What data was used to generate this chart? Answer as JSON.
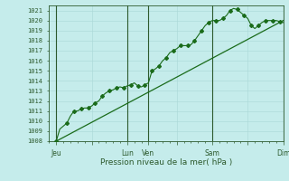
{
  "xlabel": "Pression niveau de la mer( hPa )",
  "bg_color": "#c5eceb",
  "grid_color_minor": "#aad8d7",
  "grid_color_major": "#88c4c2",
  "line_color": "#1a6b1a",
  "axis_color": "#2d5a2d",
  "ylim": [
    1008,
    1021.5
  ],
  "xlim": [
    0,
    33
  ],
  "yticks": [
    1008,
    1009,
    1010,
    1011,
    1012,
    1013,
    1014,
    1015,
    1016,
    1017,
    1018,
    1019,
    1020,
    1021
  ],
  "xtick_labels": [
    "Jeu",
    "",
    "Lun",
    "Ven",
    "",
    "Sam",
    "",
    "Dim"
  ],
  "xtick_pos": [
    1,
    6,
    11,
    14,
    18,
    23,
    28,
    33
  ],
  "vline_positions": [
    1,
    11,
    14,
    23,
    33
  ],
  "curve1_x": [
    1,
    1.5,
    2.5,
    3,
    3.5,
    4,
    4.5,
    5,
    5.5,
    6,
    6.5,
    7,
    7.5,
    8,
    8.5,
    9,
    9.5,
    10,
    10.5,
    11,
    11.5,
    12,
    12.5,
    13,
    13.5,
    14,
    14.5,
    15,
    15.5,
    16,
    16.5,
    17,
    17.5,
    18,
    18.5,
    19,
    19.5,
    20,
    20.5,
    21,
    21.5,
    22,
    22.5,
    23,
    23.5,
    24,
    24.5,
    25,
    25.5,
    26,
    26.5,
    27,
    27.5,
    28,
    28.5,
    29,
    29.5,
    30,
    30.5,
    31,
    31.5,
    32,
    32.5,
    33
  ],
  "curve1_y": [
    1008.0,
    1009.2,
    1009.8,
    1010.5,
    1011.0,
    1011.0,
    1011.2,
    1011.3,
    1011.3,
    1011.5,
    1011.8,
    1012.0,
    1012.5,
    1012.8,
    1013.0,
    1013.1,
    1013.3,
    1013.4,
    1013.3,
    1013.5,
    1013.6,
    1013.8,
    1013.5,
    1013.4,
    1013.6,
    1013.8,
    1015.0,
    1015.2,
    1015.5,
    1016.0,
    1016.3,
    1016.8,
    1017.0,
    1017.2,
    1017.5,
    1017.5,
    1017.5,
    1017.6,
    1018.0,
    1018.5,
    1019.0,
    1019.5,
    1019.8,
    1020.0,
    1020.0,
    1020.0,
    1020.2,
    1020.5,
    1021.0,
    1021.2,
    1021.1,
    1020.8,
    1020.5,
    1020.2,
    1019.5,
    1019.2,
    1019.5,
    1019.8,
    1020.0,
    1020.0,
    1020.0,
    1020.0,
    1019.9,
    1019.8
  ],
  "curve2_x": [
    1,
    33
  ],
  "curve2_y": [
    1008.0,
    1020.0
  ],
  "marker_style": "D",
  "marker_size": 2.0,
  "marker_every": 2
}
